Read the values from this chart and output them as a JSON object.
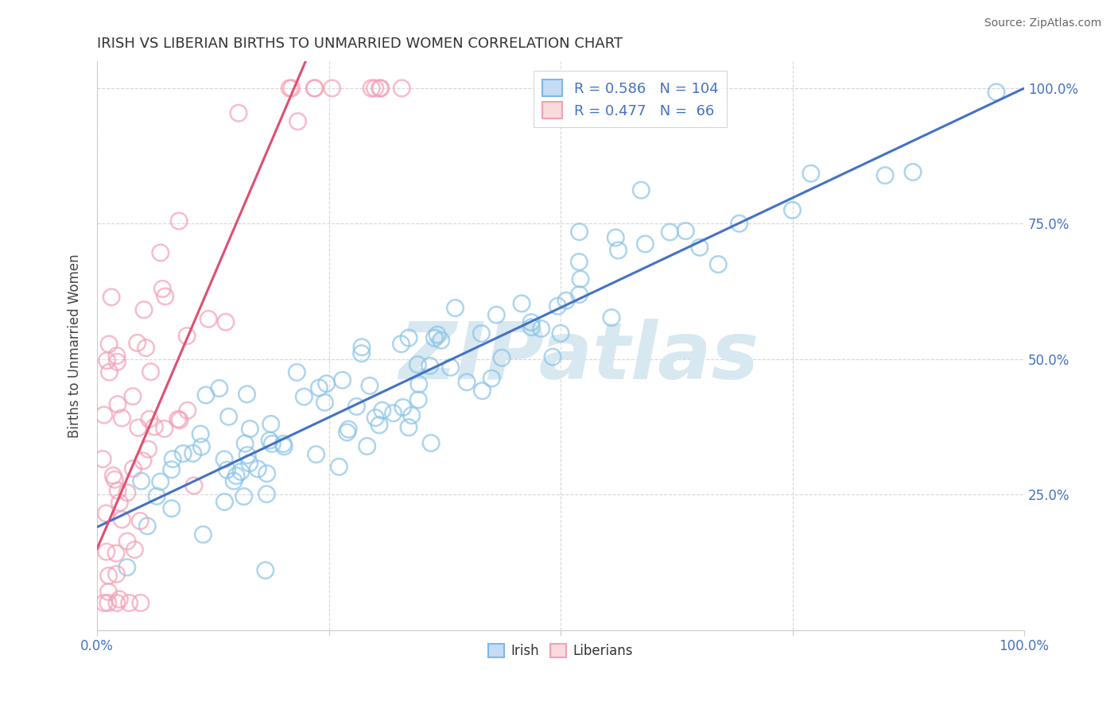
{
  "title": "IRISH VS LIBERIAN BIRTHS TO UNMARRIED WOMEN CORRELATION CHART",
  "source": "Source: ZipAtlas.com",
  "ylabel": "Births to Unmarried Women",
  "legend_irish_R": 0.586,
  "legend_irish_N": 104,
  "legend_liberian_R": 0.477,
  "legend_liberian_N": 66,
  "irish_color": "#89C4E8",
  "liberian_color": "#F4A0B5",
  "irish_line_color": "#4472C4",
  "liberian_line_color": "#E05070",
  "background_color": "#FFFFFF",
  "title_color": "#333333",
  "axis_label_color": "#4472C4",
  "watermark_color": "#D8E8F0",
  "watermark_text": "ZIPatlas"
}
